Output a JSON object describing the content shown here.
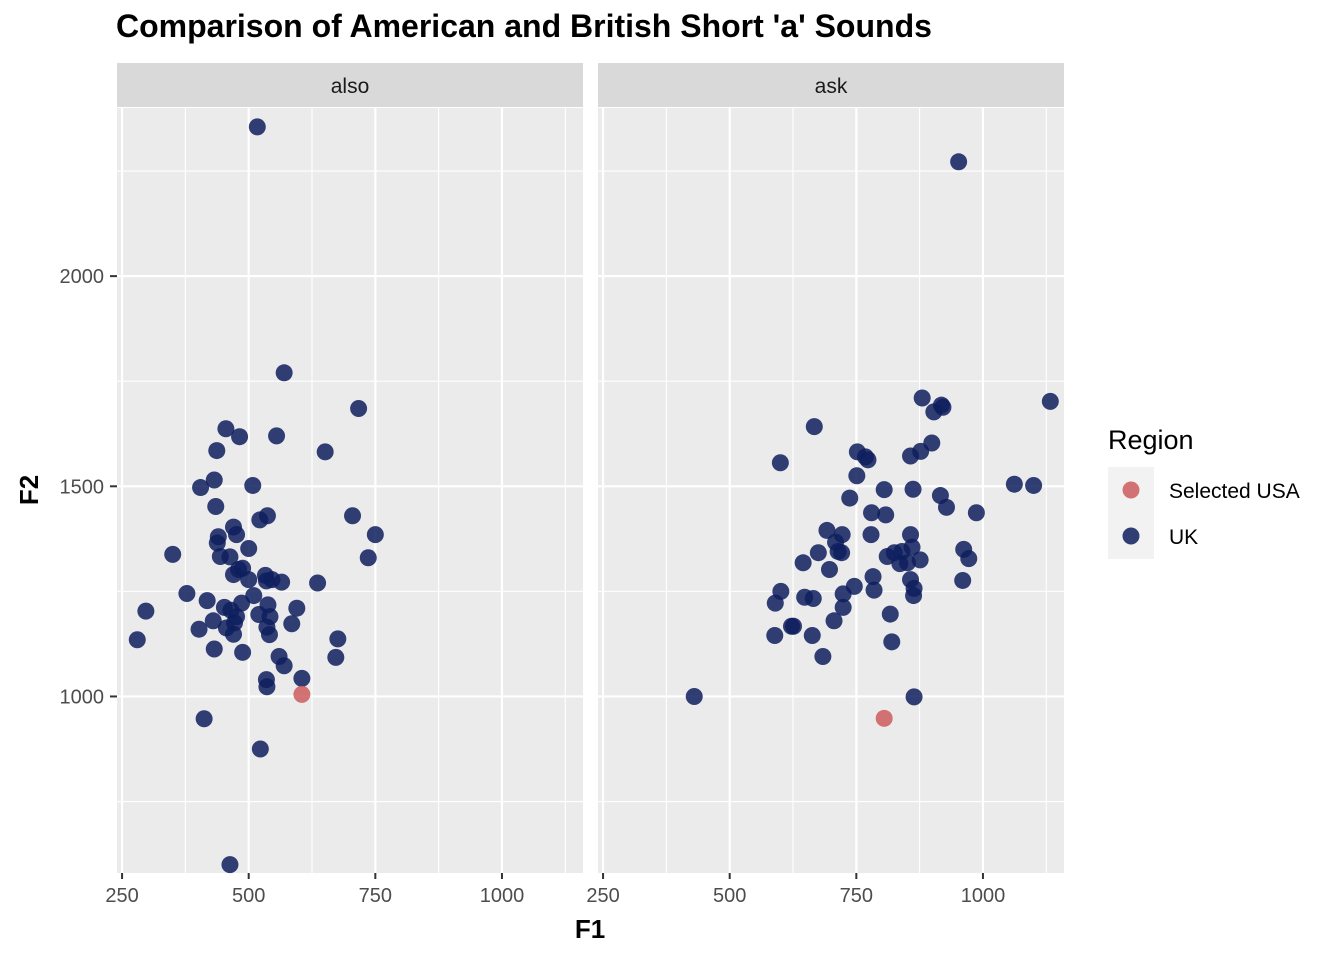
{
  "chart_data": {
    "type": "scatter",
    "title": "Comparison of American and British Short 'a' Sounds",
    "xlabel": "F1",
    "ylabel": "F2",
    "xlim": [
      240,
      1160
    ],
    "ylim": [
      580,
      2400
    ],
    "x_ticks": [
      250,
      500,
      750,
      1000
    ],
    "y_ticks": [
      1000,
      1500,
      2000
    ],
    "legend": {
      "title": "Region",
      "position": "right",
      "entries": [
        {
          "name": "Selected USA",
          "color": "#CD5C5C"
        },
        {
          "name": "UK",
          "color": "#0E1E5E"
        }
      ]
    },
    "facets": [
      {
        "label": "also",
        "series": [
          {
            "name": "Selected USA",
            "points": [
              [
                605,
                1005
              ]
            ]
          },
          {
            "name": "UK",
            "points": [
              [
                517,
                2355
              ],
              [
                570,
                1770
              ],
              [
                717,
                1685
              ],
              [
                455,
                1637
              ],
              [
                555,
                1620
              ],
              [
                482,
                1618
              ],
              [
                437,
                1585
              ],
              [
                651,
                1582
              ],
              [
                432,
                1515
              ],
              [
                508,
                1502
              ],
              [
                405,
                1497
              ],
              [
                435,
                1452
              ],
              [
                537,
                1430
              ],
              [
                705,
                1430
              ],
              [
                522,
                1420
              ],
              [
                470,
                1403
              ],
              [
                476,
                1385
              ],
              [
                440,
                1380
              ],
              [
                750,
                1385
              ],
              [
                438,
                1365
              ],
              [
                500,
                1352
              ],
              [
                350,
                1338
              ],
              [
                444,
                1333
              ],
              [
                463,
                1332
              ],
              [
                736,
                1330
              ],
              [
                488,
                1305
              ],
              [
                480,
                1302
              ],
              [
                533,
                1288
              ],
              [
                470,
                1290
              ],
              [
                546,
                1278
              ],
              [
                500,
                1278
              ],
              [
                565,
                1272
              ],
              [
                535,
                1275
              ],
              [
                636,
                1270
              ],
              [
                378,
                1245
              ],
              [
                510,
                1240
              ],
              [
                418,
                1228
              ],
              [
                486,
                1222
              ],
              [
                538,
                1218
              ],
              [
                595,
                1210
              ],
              [
                297,
                1203
              ],
              [
                452,
                1212
              ],
              [
                465,
                1205
              ],
              [
                520,
                1195
              ],
              [
                476,
                1190
              ],
              [
                430,
                1180
              ],
              [
                542,
                1190
              ],
              [
                472,
                1175
              ],
              [
                585,
                1173
              ],
              [
                402,
                1160
              ],
              [
                456,
                1163
              ],
              [
                536,
                1165
              ],
              [
                541,
                1147
              ],
              [
                470,
                1148
              ],
              [
                676,
                1137
              ],
              [
                280,
                1135
              ],
              [
                432,
                1113
              ],
              [
                488,
                1105
              ],
              [
                560,
                1095
              ],
              [
                672,
                1093
              ],
              [
                570,
                1073
              ],
              [
                535,
                1040
              ],
              [
                605,
                1043
              ],
              [
                536,
                1023
              ],
              [
                412,
                947
              ],
              [
                523,
                875
              ],
              [
                463,
                600
              ]
            ]
          }
        ]
      },
      {
        "label": "ask",
        "series": [
          {
            "name": "Selected USA",
            "points": [
              [
                805,
                948
              ]
            ]
          },
          {
            "name": "UK",
            "points": [
              [
                952,
                2272
              ],
              [
                1133,
                1702
              ],
              [
                880,
                1710
              ],
              [
                918,
                1693
              ],
              [
                903,
                1677
              ],
              [
                921,
                1688
              ],
              [
                667,
                1642
              ],
              [
                899,
                1603
              ],
              [
                877,
                1583
              ],
              [
                752,
                1582
              ],
              [
                768,
                1570
              ],
              [
                773,
                1563
              ],
              [
                857,
                1572
              ],
              [
                600,
                1556
              ],
              [
                751,
                1525
              ],
              [
                1062,
                1505
              ],
              [
                1100,
                1502
              ],
              [
                805,
                1492
              ],
              [
                862,
                1493
              ],
              [
                916,
                1478
              ],
              [
                737,
                1472
              ],
              [
                928,
                1450
              ],
              [
                987,
                1437
              ],
              [
                780,
                1437
              ],
              [
                808,
                1432
              ],
              [
                692,
                1395
              ],
              [
                722,
                1385
              ],
              [
                779,
                1385
              ],
              [
                857,
                1385
              ],
              [
                709,
                1367
              ],
              [
                962,
                1350
              ],
              [
                860,
                1355
              ],
              [
                714,
                1345
              ],
              [
                721,
                1342
              ],
              [
                825,
                1342
              ],
              [
                840,
                1345
              ],
              [
                675,
                1342
              ],
              [
                811,
                1333
              ],
              [
                972,
                1328
              ],
              [
                876,
                1325
              ],
              [
                836,
                1316
              ],
              [
                851,
                1318
              ],
              [
                645,
                1318
              ],
              [
                697,
                1302
              ],
              [
                783,
                1285
              ],
              [
                857,
                1278
              ],
              [
                960,
                1276
              ],
              [
                746,
                1262
              ],
              [
                864,
                1257
              ],
              [
                785,
                1253
              ],
              [
                601,
                1250
              ],
              [
                724,
                1244
              ],
              [
                648,
                1236
              ],
              [
                665,
                1233
              ],
              [
                863,
                1240
              ],
              [
                590,
                1222
              ],
              [
                724,
                1212
              ],
              [
                817,
                1196
              ],
              [
                706,
                1180
              ],
              [
                626,
                1167
              ],
              [
                622,
                1167
              ],
              [
                589,
                1145
              ],
              [
                663,
                1145
              ],
              [
                820,
                1130
              ],
              [
                684,
                1095
              ],
              [
                430,
                1000
              ],
              [
                864,
                999
              ]
            ]
          }
        ]
      }
    ]
  }
}
